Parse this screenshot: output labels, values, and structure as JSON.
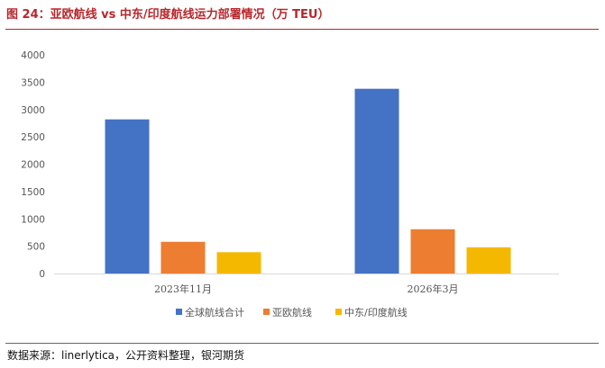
{
  "title": "图 24：亚欧航线 vs 中东/印度航线运力部署情况（万 TEU）",
  "source": "数据来源：linerlytica，公开资料整理，银河期货",
  "chart_data": {
    "type": "bar",
    "categories": [
      "2023年11月",
      "2026年3月"
    ],
    "series": [
      {
        "name": "全球航线合计",
        "color": "#4472c4",
        "values": [
          2820,
          3380
        ]
      },
      {
        "name": "亚欧航线",
        "color": "#ed7d31",
        "values": [
          580,
          810
        ]
      },
      {
        "name": "中东/印度航线",
        "color": "#f5b800",
        "values": [
          390,
          480
        ]
      }
    ],
    "ylim": [
      0,
      4000
    ],
    "yticks": [
      0,
      500,
      1000,
      1500,
      2000,
      2500,
      3000,
      3500,
      4000
    ],
    "ytick_labels": [
      "0",
      "500",
      "1000",
      "1500",
      "2000",
      "2500",
      "3000",
      "3500",
      "4000"
    ],
    "grid": false,
    "legend": "bottom"
  }
}
